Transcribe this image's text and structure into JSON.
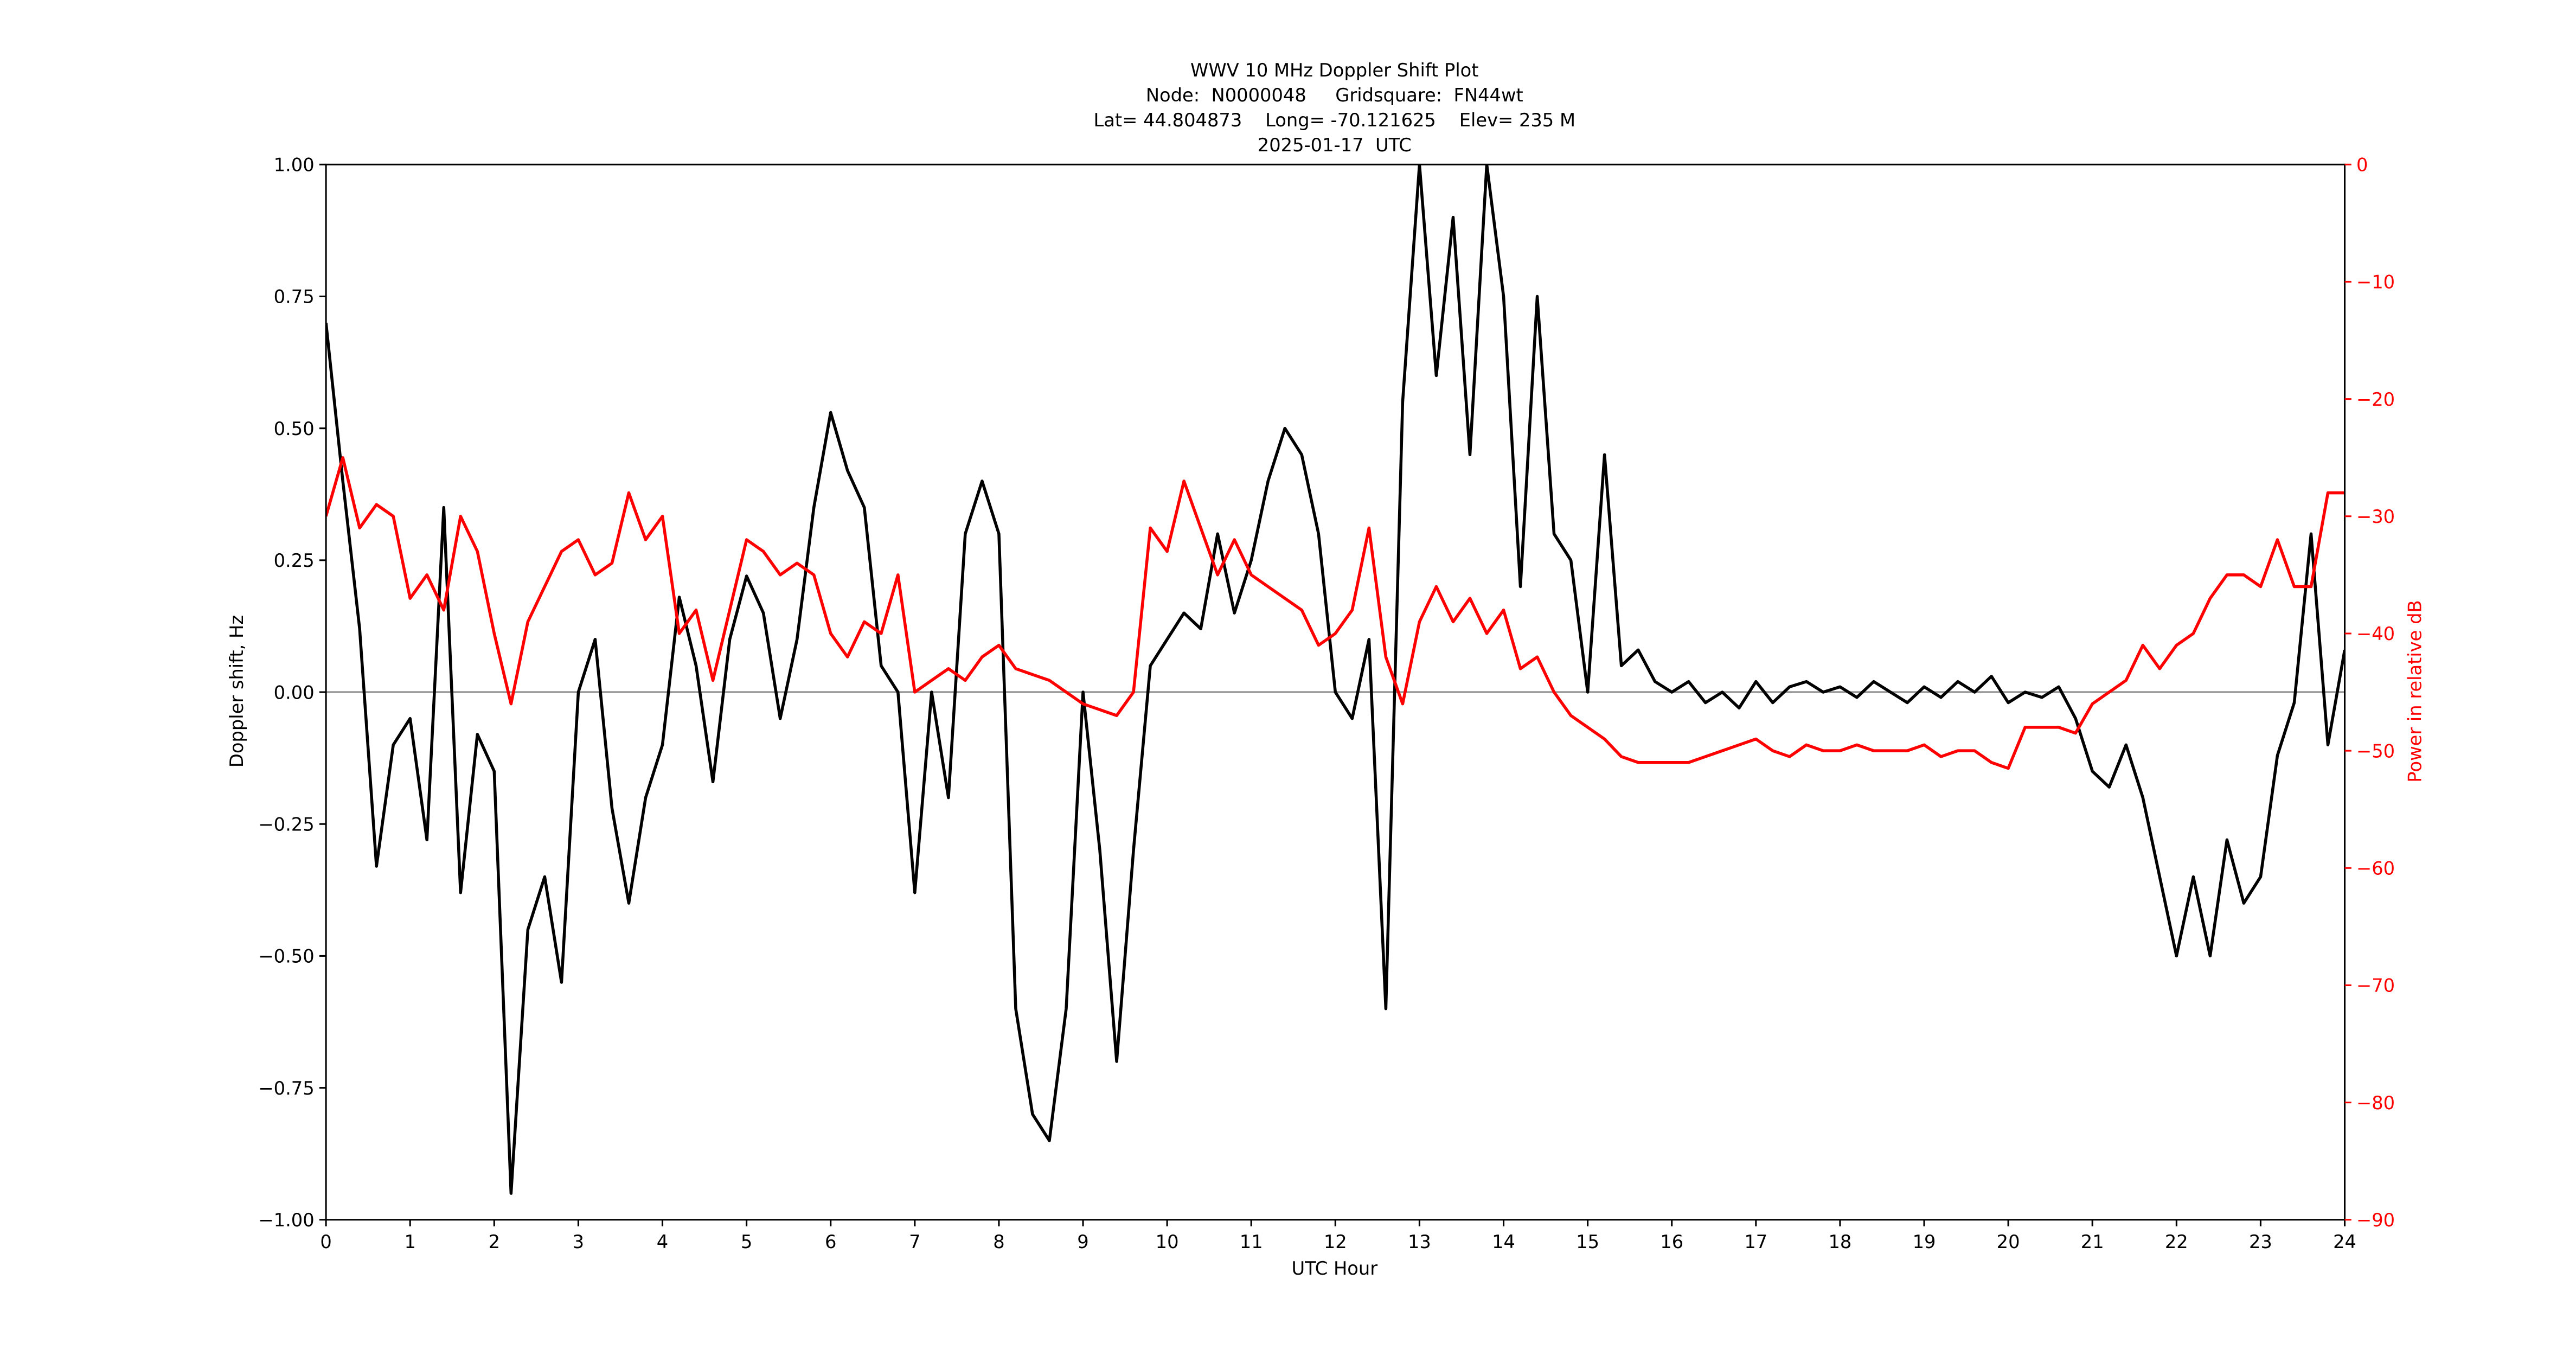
{
  "chart_data": {
    "type": "line",
    "title_lines": [
      "WWV 10 MHz Doppler Shift Plot",
      "Node:  N0000048     Gridsquare:  FN44wt",
      "Lat= 44.804873    Long= -70.121625    Elev= 235 M",
      "2025-01-17  UTC"
    ],
    "xlabel": "UTC Hour",
    "ylabel": "Doppler shift, Hz",
    "y2label": "Power in relative dB",
    "xlim": [
      0,
      24
    ],
    "xticks": [
      0,
      1,
      2,
      3,
      4,
      5,
      6,
      7,
      8,
      9,
      10,
      11,
      12,
      13,
      14,
      15,
      16,
      17,
      18,
      19,
      20,
      21,
      22,
      23,
      24
    ],
    "ylim": [
      -1,
      1
    ],
    "yticks": [
      {
        "value": -1,
        "label": "−1.00"
      },
      {
        "value": -0.75,
        "label": "−0.75"
      },
      {
        "value": -0.5,
        "label": "−0.50"
      },
      {
        "value": -0.25,
        "label": "−0.25"
      },
      {
        "value": 0,
        "label": "0.00"
      },
      {
        "value": 0.25,
        "label": "0.25"
      },
      {
        "value": 0.5,
        "label": "0.50"
      },
      {
        "value": 0.75,
        "label": "0.75"
      },
      {
        "value": 1,
        "label": "1.00"
      }
    ],
    "y2lim": [
      -90,
      0
    ],
    "y2ticks": [
      {
        "value": -90,
        "label": "−90"
      },
      {
        "value": -80,
        "label": "−80"
      },
      {
        "value": -70,
        "label": "−70"
      },
      {
        "value": -60,
        "label": "−60"
      },
      {
        "value": -50,
        "label": "−50"
      },
      {
        "value": -40,
        "label": "−40"
      },
      {
        "value": -30,
        "label": "−30"
      },
      {
        "value": -20,
        "label": "−20"
      },
      {
        "value": -10,
        "label": "−10"
      },
      0
    ],
    "y2color": "#ff0000",
    "hline": 0,
    "hline_color": "#999999",
    "x": [
      0,
      0.2,
      0.4,
      0.6,
      0.8,
      1,
      1.2,
      1.4,
      1.6,
      1.8,
      2,
      2.2,
      2.4,
      2.6,
      2.8,
      3,
      3.2,
      3.4,
      3.6,
      3.8,
      4,
      4.2,
      4.4,
      4.6,
      4.8,
      5,
      5.2,
      5.4,
      5.6,
      5.8,
      6,
      6.2,
      6.4,
      6.6,
      6.8,
      7,
      7.2,
      7.4,
      7.6,
      7.8,
      8,
      8.2,
      8.4,
      8.6,
      8.8,
      9,
      9.2,
      9.4,
      9.6,
      9.8,
      10,
      10.2,
      10.4,
      10.6,
      10.8,
      11,
      11.2,
      11.4,
      11.6,
      11.8,
      12,
      12.2,
      12.4,
      12.6,
      12.8,
      13,
      13.2,
      13.4,
      13.6,
      13.8,
      14,
      14.2,
      14.4,
      14.6,
      14.8,
      15,
      15.2,
      15.4,
      15.6,
      15.8,
      16,
      16.2,
      16.4,
      16.6,
      16.8,
      17,
      17.2,
      17.4,
      17.6,
      17.8,
      18,
      18.2,
      18.4,
      18.6,
      18.8,
      19,
      19.2,
      19.4,
      19.6,
      19.8,
      20,
      20.2,
      20.4,
      20.6,
      20.8,
      21,
      21.2,
      21.4,
      21.6,
      21.8,
      22,
      22.2,
      22.4,
      22.6,
      22.8,
      23,
      23.2,
      23.4,
      23.6,
      23.8,
      24
    ],
    "series": [
      {
        "color": "#000000",
        "values": [
          0.7,
          0.4,
          0.12,
          -0.33,
          -0.1,
          -0.05,
          -0.28,
          0.35,
          -0.38,
          -0.08,
          -0.15,
          -0.95,
          -0.45,
          -0.35,
          -0.55,
          0.0,
          0.1,
          -0.22,
          -0.4,
          -0.2,
          -0.1,
          0.18,
          0.05,
          -0.17,
          0.1,
          0.22,
          0.15,
          -0.05,
          0.1,
          0.35,
          0.53,
          0.42,
          0.35,
          0.05,
          0.0,
          -0.38,
          0.0,
          -0.2,
          0.3,
          0.4,
          0.3,
          -0.6,
          -0.8,
          -0.85,
          -0.6,
          0.0,
          -0.3,
          -0.7,
          -0.3,
          0.05,
          0.1,
          0.15,
          0.12,
          0.3,
          0.15,
          0.25,
          0.4,
          0.5,
          0.45,
          0.3,
          0.0,
          -0.05,
          0.1,
          -0.6,
          0.55,
          1.0,
          0.6,
          0.9,
          0.45,
          1.0,
          0.75,
          0.2,
          0.75,
          0.3,
          0.25,
          0.0,
          0.45,
          0.05,
          0.08,
          0.02,
          0.0,
          0.02,
          -0.02,
          0.0,
          -0.03,
          0.02,
          -0.02,
          0.01,
          0.02,
          0.0,
          0.01,
          -0.01,
          0.02,
          0.0,
          -0.02,
          0.01,
          -0.01,
          0.02,
          0.0,
          0.03,
          -0.02,
          0.0,
          -0.01,
          0.01,
          -0.05,
          -0.15,
          -0.18,
          -0.1,
          -0.2,
          -0.35,
          -0.5,
          -0.35,
          -0.5,
          -0.28,
          -0.4,
          -0.35,
          -0.12,
          -0.02,
          0.3,
          -0.1,
          0.08
        ]
      },
      {
        "color": "#ff0000",
        "axis": "y2",
        "values": [
          -30,
          -25,
          -31,
          -29,
          -30,
          -37,
          -35,
          -38,
          -30,
          -33,
          -40,
          -46,
          -39,
          -36,
          -33,
          -32,
          -35,
          -34,
          -28,
          -32,
          -30,
          -40,
          -38,
          -44,
          -38,
          -32,
          -33,
          -35,
          -34,
          -35,
          -40,
          -42,
          -39,
          -40,
          -35,
          -45,
          -44,
          -43,
          -44,
          -42,
          -41,
          -43,
          -43.5,
          -44,
          -45,
          -46,
          -46.5,
          -47,
          -45,
          -31,
          -33,
          -27,
          -31,
          -35,
          -32,
          -35,
          -36,
          -37,
          -38,
          -41,
          -40,
          -38,
          -31,
          -42,
          -46,
          -39,
          -36,
          -39,
          -37,
          -40,
          -38,
          -43,
          -42,
          -45,
          -47,
          -48,
          -49,
          -50.5,
          -51,
          -51,
          -51,
          -51,
          -50.5,
          -50,
          -49.5,
          -49,
          -50,
          -50.5,
          -49.5,
          -50,
          -50,
          -49.5,
          -50,
          -50,
          -50,
          -49.5,
          -50.5,
          -50,
          -50,
          -51,
          -51.5,
          -48,
          -48,
          -48,
          -48.5,
          -46,
          -45,
          -44,
          -41,
          -43,
          -41,
          -40,
          -37,
          -35,
          -35,
          -36,
          -32,
          -36,
          -36,
          -28,
          -28
        ]
      }
    ]
  }
}
